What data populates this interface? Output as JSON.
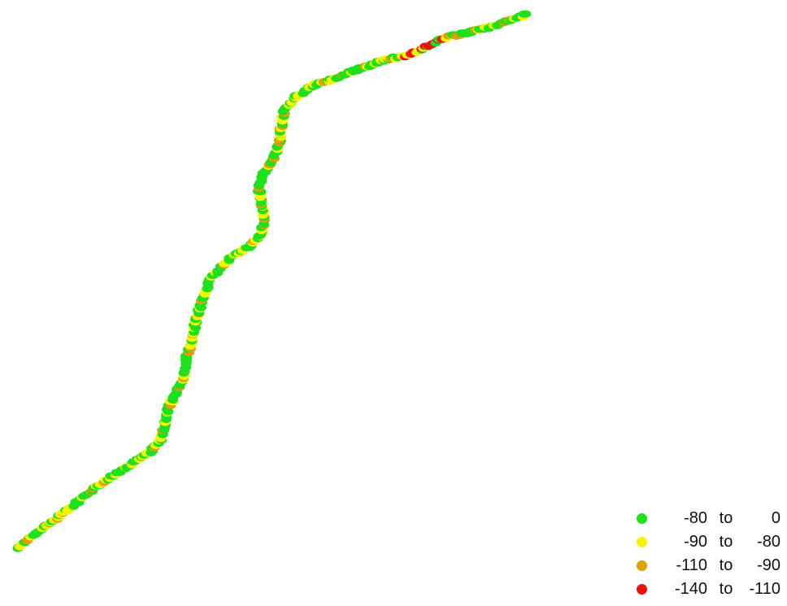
{
  "map": {
    "legend": {
      "items": [
        {
          "from": "-80",
          "to_word": "to",
          "to": "0",
          "color": "#1ee11e"
        },
        {
          "from": "-90",
          "to_word": "to",
          "to": "-80",
          "color": "#f5f500"
        },
        {
          "from": "-110",
          "to_word": "to",
          "to": "-90",
          "color": "#e0a000"
        },
        {
          "from": "-140",
          "to_word": "to",
          "to": "-110",
          "color": "#ee1111"
        }
      ]
    }
  }
}
